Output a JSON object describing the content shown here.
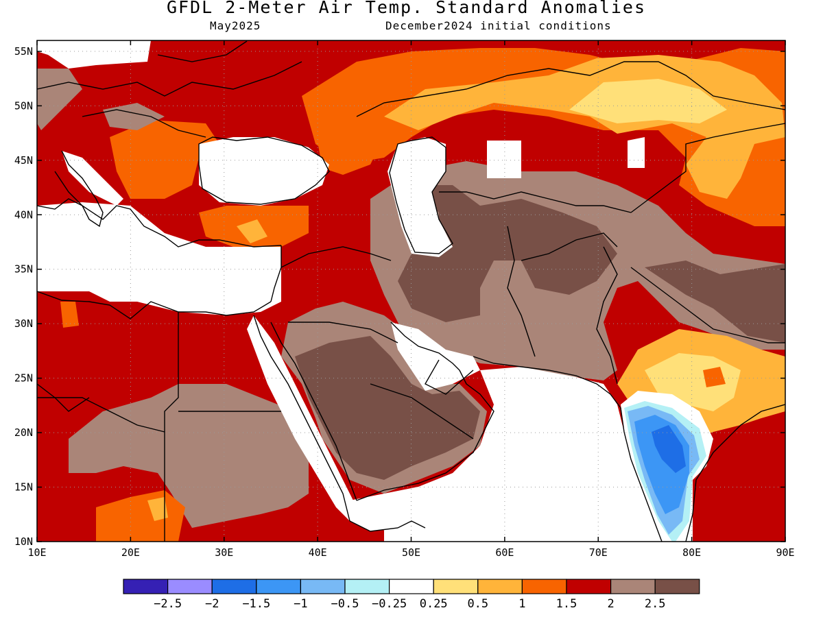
{
  "title": "GFDL 2-Meter Air Temp. Standard Anomalies",
  "subtitle_left": "May2025",
  "subtitle_right": "December2024 initial conditions",
  "map": {
    "lon_range": [
      10,
      90
    ],
    "lat_range": [
      10,
      56
    ],
    "lat_ticks": [
      "55N",
      "50N",
      "45N",
      "40N",
      "35N",
      "30N",
      "25N",
      "20N",
      "15N",
      "10N"
    ],
    "lat_values": [
      55,
      50,
      45,
      40,
      35,
      30,
      25,
      20,
      15,
      10
    ],
    "lon_ticks": [
      "10E",
      "20E",
      "30E",
      "40E",
      "50E",
      "60E",
      "70E",
      "80E",
      "90E"
    ],
    "lon_values": [
      10,
      20,
      30,
      40,
      50,
      60,
      70,
      80,
      90
    ],
    "grid": "dotted",
    "colors": {
      "dark_brown": "#785047",
      "light_brown": "#aa8578",
      "dark_red": "#c00000",
      "orange_red": "#f86400",
      "orange": "#ffb43a",
      "light_yellow": "#ffe079",
      "white": "#ffffff",
      "pale_cyan": "#b4f0f5",
      "light_blue": "#78b9f5",
      "mid_blue": "#3c96f5",
      "blue": "#1e6ee6"
    }
  },
  "colorbar": {
    "colors": [
      "#3520b4",
      "#9a8cff",
      "#1e6ee6",
      "#3c96f5",
      "#78b9f5",
      "#b4f0f5",
      "#ffffff",
      "#ffe079",
      "#ffb43a",
      "#f86400",
      "#c00000",
      "#aa8578",
      "#785047"
    ],
    "labels": [
      "−2.5",
      "−2",
      "−1.5",
      "−1",
      "−0.5",
      "−0.25",
      "0.25",
      "0.5",
      "1",
      "1.5",
      "2",
      "2.5"
    ]
  }
}
